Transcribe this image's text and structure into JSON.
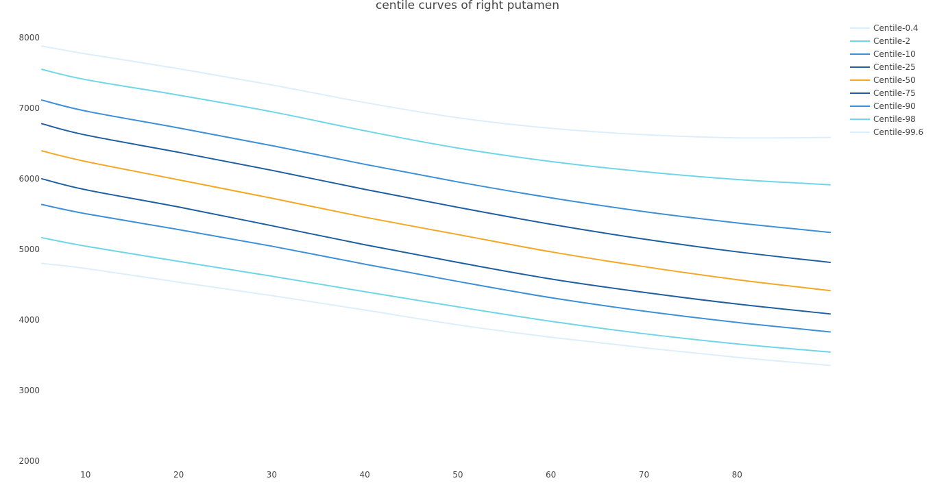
{
  "chart_data": {
    "type": "line",
    "title": "centile curves of right putamen",
    "xlabel": "",
    "ylabel": "",
    "xlim": [
      5.3,
      90
    ],
    "ylim": [
      2000,
      8300
    ],
    "xticks": [
      10,
      20,
      30,
      40,
      50,
      60,
      70,
      80
    ],
    "yticks": [
      2000,
      3000,
      4000,
      5000,
      6000,
      7000,
      8000
    ],
    "grid": false,
    "legend_position": "top-right",
    "x": [
      5.3,
      10,
      20,
      30,
      40,
      50,
      60,
      70,
      80,
      90
    ],
    "series": [
      {
        "name": "Centile-0.4",
        "color": "#ddeefa",
        "values": [
          4800,
          4730,
          4535,
          4345,
          4140,
          3930,
          3755,
          3605,
          3470,
          3355
        ]
      },
      {
        "name": "Centile-2",
        "color": "#6fd6e8",
        "values": [
          5165,
          5045,
          4830,
          4620,
          4400,
          4185,
          3980,
          3805,
          3660,
          3545
        ]
      },
      {
        "name": "Centile-10",
        "color": "#3d8fd6",
        "values": [
          5635,
          5505,
          5280,
          5045,
          4790,
          4545,
          4315,
          4125,
          3965,
          3830
        ]
      },
      {
        "name": "Centile-25",
        "color": "#1f5fa0",
        "values": [
          6000,
          5845,
          5600,
          5335,
          5065,
          4815,
          4580,
          4390,
          4225,
          4085
        ]
      },
      {
        "name": "Centile-50",
        "color": "#f5a623",
        "values": [
          6395,
          6245,
          5985,
          5725,
          5455,
          5210,
          4965,
          4755,
          4570,
          4415
        ]
      },
      {
        "name": "Centile-75",
        "color": "#1f5fa0",
        "values": [
          6780,
          6620,
          6375,
          6120,
          5850,
          5595,
          5355,
          5145,
          4965,
          4815
        ]
      },
      {
        "name": "Centile-90",
        "color": "#3d8fd6",
        "values": [
          7115,
          6960,
          6720,
          6470,
          6205,
          5955,
          5730,
          5535,
          5375,
          5240
        ]
      },
      {
        "name": "Centile-98",
        "color": "#6fd6e8",
        "values": [
          7550,
          7405,
          7185,
          6950,
          6680,
          6435,
          6245,
          6100,
          5990,
          5915
        ]
      },
      {
        "name": "Centile-99.6",
        "color": "#ddeefa",
        "values": [
          7880,
          7770,
          7560,
          7330,
          7080,
          6865,
          6715,
          6625,
          6580,
          6585
        ]
      }
    ]
  }
}
